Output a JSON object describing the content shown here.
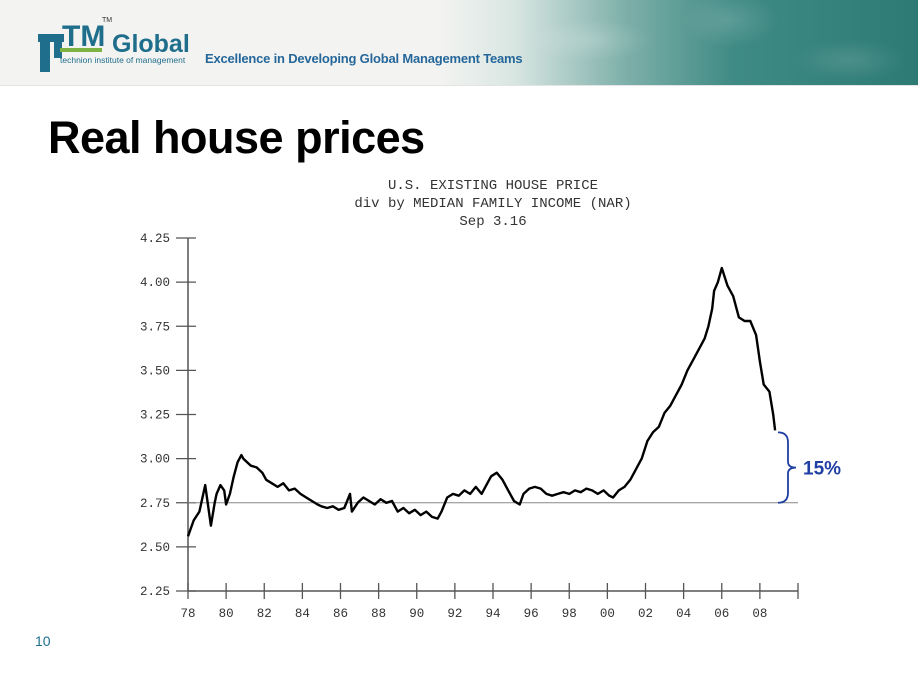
{
  "header": {
    "logo_mark": "TM",
    "logo_tm": "TM",
    "logo_word": "Global",
    "logo_tagline": "technion institute of management",
    "slogan": "Excellence in Developing Global Management Teams",
    "colors": {
      "logo_teal": "#1f6e8c",
      "logo_green": "#7cb342",
      "slogan": "#25679a"
    }
  },
  "slide": {
    "title": "Real house prices",
    "number": "10"
  },
  "chart_data": {
    "type": "line",
    "title_lines": [
      "U.S. EXISTING HOUSE PRICE",
      "div by MEDIAN FAMILY INCOME  (NAR)",
      "Sep 3.16"
    ],
    "xlabel": "",
    "ylabel": "",
    "x_range": [
      1978,
      2010
    ],
    "ylim": [
      2.25,
      4.25
    ],
    "y_ticks": [
      4.25,
      4.0,
      3.75,
      3.5,
      3.25,
      3.0,
      2.75,
      2.5,
      2.25
    ],
    "y_tick_labels": [
      "4.25",
      "4.00",
      "3.75",
      "3.50",
      "3.25",
      "3.00",
      "2.75",
      "2.50",
      "2.25"
    ],
    "x_ticks": [
      1978,
      1980,
      1982,
      1984,
      1986,
      1988,
      1990,
      1992,
      1994,
      1996,
      1998,
      2000,
      2002,
      2004,
      2006,
      2008,
      2010
    ],
    "x_tick_labels": [
      "78",
      "80",
      "82",
      "84",
      "86",
      "88",
      "90",
      "92",
      "94",
      "96",
      "98",
      "00",
      "02",
      "04",
      "06",
      "08",
      ""
    ],
    "reference_line": 2.75,
    "grid": false,
    "line_color": "#000000",
    "series": [
      {
        "x": [
          1978.0,
          1978.3,
          1978.6,
          1978.9,
          1979.2,
          1979.4,
          1979.5,
          1979.7,
          1979.9,
          1980.0,
          1980.2,
          1980.4,
          1980.6,
          1980.8,
          1980.9,
          1981.1,
          1981.3,
          1981.6,
          1981.9,
          1982.1,
          1982.4,
          1982.7,
          1983.0,
          1983.3,
          1983.6,
          1983.9,
          1984.2,
          1984.5,
          1984.8,
          1985.0,
          1985.3,
          1985.6,
          1985.9,
          1986.2,
          1986.5,
          1986.6,
          1986.9,
          1987.2,
          1987.5,
          1987.8,
          1988.1,
          1988.4,
          1988.7,
          1989.0,
          1989.3,
          1989.6,
          1989.9,
          1990.2,
          1990.5,
          1990.8,
          1991.1,
          1991.3,
          1991.6,
          1991.9,
          1992.2,
          1992.5,
          1992.8,
          1993.1,
          1993.4,
          1993.7,
          1993.9,
          1994.2,
          1994.5,
          1994.8,
          1995.1,
          1995.4,
          1995.6,
          1995.9,
          1996.2,
          1996.5,
          1996.8,
          1997.1,
          1997.4,
          1997.7,
          1998.0,
          1998.3,
          1998.6,
          1998.9,
          1999.2,
          1999.5,
          1999.8,
          2000.1,
          2000.3,
          2000.6,
          2000.9,
          2001.2,
          2001.5,
          2001.8,
          2002.1,
          2002.4,
          2002.7,
          2003.0,
          2003.3,
          2003.6,
          2003.9,
          2004.2,
          2004.5,
          2004.8,
          2005.1,
          2005.3,
          2005.5,
          2005.6,
          2005.8,
          2006.0,
          2006.3,
          2006.6,
          2006.9,
          2007.2,
          2007.5,
          2007.8,
          2008.0,
          2008.2,
          2008.5,
          2008.7,
          2008.8
        ],
        "y": [
          2.56,
          2.65,
          2.7,
          2.85,
          2.62,
          2.75,
          2.8,
          2.85,
          2.82,
          2.74,
          2.8,
          2.9,
          2.98,
          3.02,
          3.0,
          2.98,
          2.96,
          2.95,
          2.92,
          2.88,
          2.86,
          2.84,
          2.86,
          2.82,
          2.83,
          2.8,
          2.78,
          2.76,
          2.74,
          2.73,
          2.72,
          2.73,
          2.71,
          2.72,
          2.8,
          2.7,
          2.75,
          2.78,
          2.76,
          2.74,
          2.77,
          2.75,
          2.76,
          2.7,
          2.72,
          2.69,
          2.71,
          2.68,
          2.7,
          2.67,
          2.66,
          2.7,
          2.78,
          2.8,
          2.79,
          2.82,
          2.8,
          2.84,
          2.8,
          2.86,
          2.9,
          2.92,
          2.88,
          2.82,
          2.76,
          2.74,
          2.8,
          2.83,
          2.84,
          2.83,
          2.8,
          2.79,
          2.8,
          2.81,
          2.8,
          2.82,
          2.81,
          2.83,
          2.82,
          2.8,
          2.82,
          2.79,
          2.78,
          2.82,
          2.84,
          2.88,
          2.94,
          3.0,
          3.1,
          3.15,
          3.18,
          3.26,
          3.3,
          3.36,
          3.42,
          3.5,
          3.56,
          3.62,
          3.68,
          3.75,
          3.85,
          3.95,
          4.0,
          4.08,
          3.98,
          3.92,
          3.8,
          3.78,
          3.78,
          3.7,
          3.55,
          3.42,
          3.38,
          3.25,
          3.16
        ]
      }
    ],
    "annotations": [
      {
        "text": "15%",
        "from": 3.16,
        "to": 2.75,
        "color": "#1f3fa3"
      }
    ]
  }
}
